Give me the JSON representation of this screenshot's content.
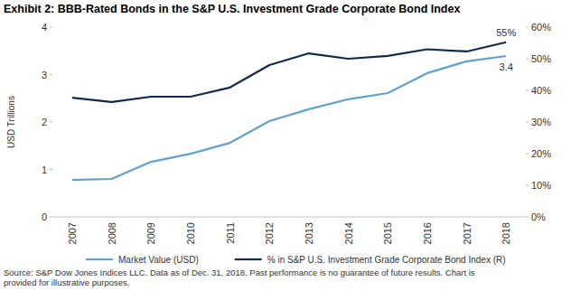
{
  "chart_data": {
    "type": "line",
    "title": "Exhibit 2: BBB-Rated Bonds in the S&P U.S. Investment Grade Corporate Bond Index",
    "y_label": "USD Trillions",
    "categories": [
      "2007",
      "2008",
      "2009",
      "2010",
      "2011",
      "2012",
      "2013",
      "2014",
      "2015",
      "2016",
      "2017",
      "2018"
    ],
    "series": [
      {
        "name": "Market Value (USD)",
        "color": "#5fa3cc",
        "axis": "y",
        "values": [
          0.78,
          0.8,
          1.16,
          1.33,
          1.56,
          2.02,
          2.27,
          2.48,
          2.61,
          3.03,
          3.28,
          3.39
        ],
        "value_labels": [
          null,
          null,
          null,
          null,
          null,
          null,
          null,
          null,
          null,
          null,
          null,
          "3.4"
        ]
      },
      {
        "name": "% in S&P U.S. Investment Grade Corporate Bond Index (R)",
        "color": "#0f2a4e",
        "axis": "y2",
        "values": [
          37.7,
          36.3,
          38,
          38,
          40.9,
          48,
          51.7,
          50,
          50.9,
          53,
          52.3,
          55.2
        ],
        "value_labels": [
          null,
          null,
          null,
          null,
          null,
          null,
          null,
          null,
          null,
          null,
          null,
          "55%"
        ]
      }
    ],
    "ylim": [
      0,
      4
    ],
    "yticks": [
      0,
      1,
      2,
      3,
      4
    ],
    "y2lim": [
      0,
      60
    ],
    "y2ticks": [
      {
        "value": 0,
        "label": "0%"
      },
      {
        "value": 10,
        "label": "10%"
      },
      {
        "value": 20,
        "label": "20%"
      },
      {
        "value": 30,
        "label": "30%"
      },
      {
        "value": 40,
        "label": "40%"
      },
      {
        "value": 50,
        "label": "50%"
      },
      {
        "value": 60,
        "label": "60%"
      }
    ],
    "grid": false,
    "legend": "bottom",
    "notes": [
      "Source: S&P Dow Jones Indices LLC. Data as of Dec. 31, 2018. Past performance is no guarantee of future results. Chart is",
      "provided for illustrative purposes."
    ]
  }
}
